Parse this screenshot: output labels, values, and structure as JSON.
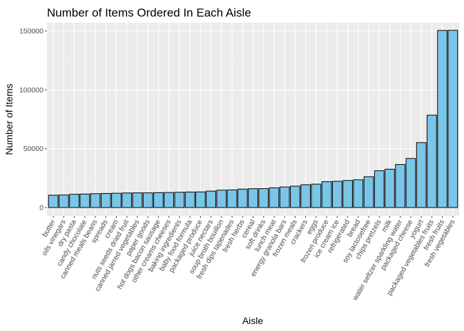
{
  "chart_data": {
    "type": "bar",
    "title": "Number of Items Ordered In Each Aisle",
    "xlabel": "Aisle",
    "ylabel": "Number of Items",
    "ylim": [
      0,
      150000
    ],
    "yticks": [
      0,
      50000,
      100000,
      150000
    ],
    "ytick_labels": [
      "0",
      "50000",
      "100000",
      "150000"
    ],
    "grid": true,
    "legend": "none",
    "bar_fill": "#7ac5e8",
    "bar_outline": "#000000",
    "panel_background": "#ebebeb",
    "categories": [
      "butter",
      "oils vinegars",
      "dry pasta",
      "candy chocolate",
      "canned meals beans",
      "spreads",
      "cream",
      "nuts seeds dried fruit",
      "canned jarred vegetables",
      "paper goods",
      "hot dogs bacon sausage",
      "other creams cheeses",
      "baking ingredients",
      "baby food formula",
      "packaged produce",
      "juice nectars",
      "soup broth bouillon",
      "fresh dips tapenades",
      "fresh herbs",
      "cereal",
      "soft drinks",
      "lunch meat",
      "energy granola bars",
      "frozen meals",
      "crackers",
      "eggs",
      "frozen produce",
      "ice cream ice",
      "refrigerated",
      "bread",
      "soy lactosefree",
      "chips pretzels",
      "milk",
      "water seltzer sparkling water",
      "packaged cheese",
      "yogurt",
      "packaged vegetables fruits",
      "fresh fruits",
      "fresh vegetables"
    ],
    "values": [
      10500,
      10700,
      11300,
      11500,
      11800,
      12000,
      12200,
      12400,
      12500,
      12500,
      12700,
      12800,
      13000,
      13200,
      13300,
      14000,
      14800,
      15000,
      15700,
      16000,
      16100,
      16800,
      17500,
      18200,
      19400,
      19900,
      22000,
      22300,
      23000,
      23600,
      26200,
      31300,
      32600,
      36600,
      41700,
      55200,
      78500,
      150500,
      150600
    ]
  }
}
